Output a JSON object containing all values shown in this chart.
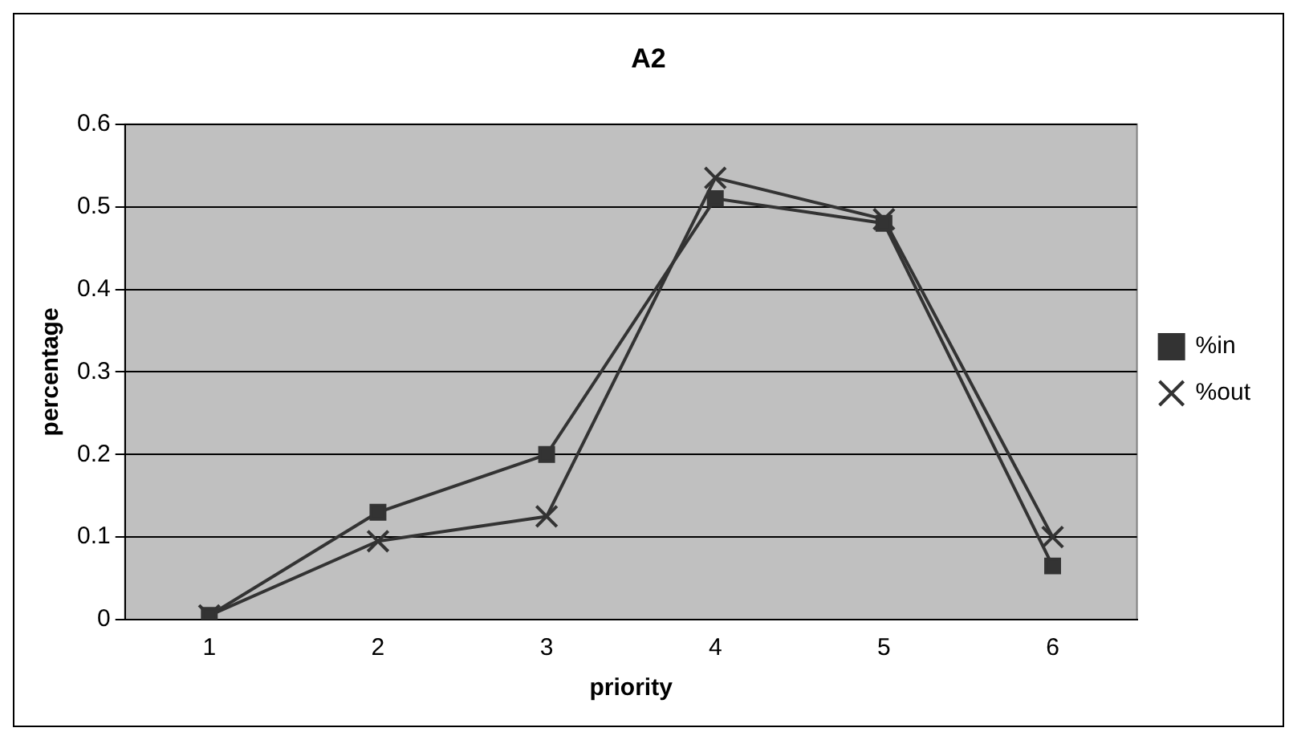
{
  "chart_data": {
    "type": "line",
    "title": "A2",
    "xlabel": "priority",
    "ylabel": "percentage",
    "categories": [
      "1",
      "2",
      "3",
      "4",
      "5",
      "6"
    ],
    "series": [
      {
        "name": "%in",
        "color": "#333333",
        "marker": "square",
        "values": [
          0.005,
          0.13,
          0.2,
          0.51,
          0.48,
          0.065
        ]
      },
      {
        "name": "%out",
        "color": "#333333",
        "marker": "cross",
        "values": [
          0.005,
          0.095,
          0.125,
          0.535,
          0.485,
          0.1
        ]
      }
    ],
    "ylim": [
      0,
      0.6
    ],
    "yticks": [
      0,
      0.1,
      0.2,
      0.3,
      0.4,
      0.5,
      0.6
    ],
    "grid": "y",
    "legend": "right",
    "line_style": "solid"
  }
}
